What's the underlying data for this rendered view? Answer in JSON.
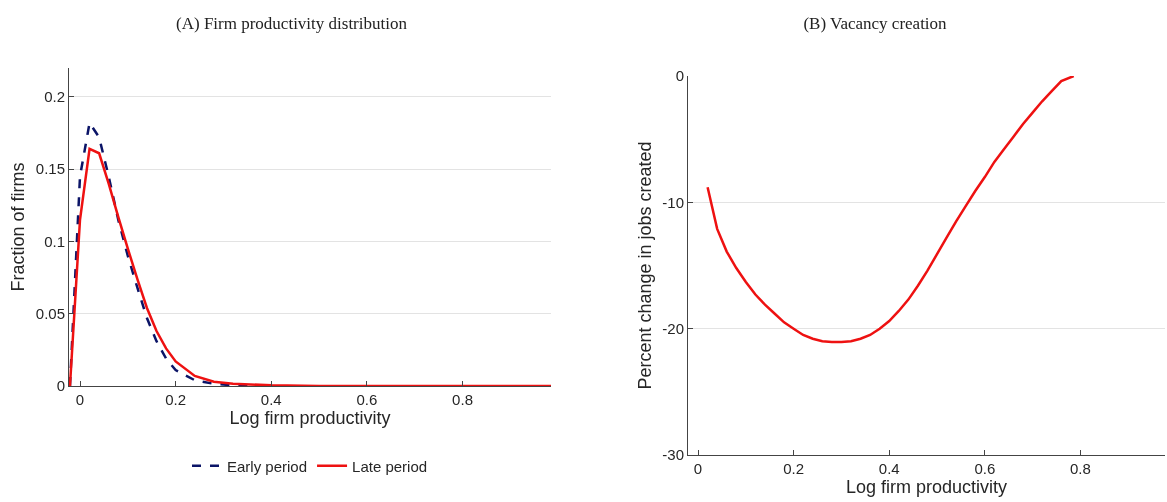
{
  "chart_data": [
    {
      "type": "line",
      "title": "(A) Firm productivity distribution",
      "xlabel": "Log firm productivity",
      "ylabel": "Fraction of firms",
      "xlim": [
        -0.023,
        0.985
      ],
      "xticks": [
        0,
        0.2,
        0.4,
        0.6,
        0.8
      ],
      "ylim": [
        0,
        0.22
      ],
      "yticks": [
        0,
        0.05,
        0.1,
        0.15,
        0.2
      ],
      "grid": "y",
      "legend": "bottom",
      "series": [
        {
          "name": "Early period",
          "color": "#0b1467",
          "line_style": "dashed",
          "x": [
            -0.021,
            0,
            0.02,
            0.04,
            0.06,
            0.08,
            0.1,
            0.12,
            0.14,
            0.16,
            0.18,
            0.2,
            0.24,
            0.28,
            0.32,
            0.4
          ],
          "values": [
            0,
            0.145,
            0.182,
            0.172,
            0.145,
            0.115,
            0.09,
            0.068,
            0.047,
            0.031,
            0.019,
            0.011,
            0.004,
            0.0015,
            0.0005,
            0
          ]
        },
        {
          "name": "Late period",
          "color": "#ee1111",
          "line_style": "solid",
          "x": [
            -0.021,
            0,
            0.02,
            0.04,
            0.06,
            0.08,
            0.1,
            0.12,
            0.14,
            0.16,
            0.18,
            0.2,
            0.24,
            0.28,
            0.32,
            0.4,
            0.5,
            0.6,
            0.7,
            0.8,
            0.9,
            0.985
          ],
          "values": [
            0,
            0.115,
            0.164,
            0.161,
            0.14,
            0.117,
            0.095,
            0.074,
            0.054,
            0.038,
            0.026,
            0.017,
            0.007,
            0.003,
            0.0015,
            0.0005,
            0,
            0,
            0,
            0,
            0,
            0
          ]
        }
      ]
    },
    {
      "type": "line",
      "title": "(B) Vacancy creation",
      "xlabel": "Log firm productivity",
      "ylabel": "Percent change in jobs created",
      "xlim": [
        -0.021,
        0.977
      ],
      "xticks": [
        0,
        0.2,
        0.4,
        0.6,
        0.8
      ],
      "ylim": [
        -30,
        0
      ],
      "yticks": [
        -30,
        -20,
        -10,
        0
      ],
      "grid": "y",
      "legend": false,
      "series": [
        {
          "color": "#ee1111",
          "line_style": "solid",
          "x": [
            0.02,
            0.04,
            0.06,
            0.08,
            0.1,
            0.12,
            0.14,
            0.16,
            0.18,
            0.2,
            0.22,
            0.24,
            0.26,
            0.28,
            0.3,
            0.32,
            0.34,
            0.36,
            0.38,
            0.4,
            0.42,
            0.44,
            0.46,
            0.48,
            0.5,
            0.52,
            0.54,
            0.56,
            0.58,
            0.6,
            0.62,
            0.64,
            0.66,
            0.68,
            0.7,
            0.72,
            0.74,
            0.76,
            0.786
          ],
          "values": [
            -8.8,
            -12.1,
            -13.9,
            -15.2,
            -16.3,
            -17.3,
            -18.1,
            -18.8,
            -19.5,
            -20.0,
            -20.5,
            -20.8,
            -21.0,
            -21.05,
            -21.05,
            -21.0,
            -20.8,
            -20.5,
            -20.0,
            -19.4,
            -18.6,
            -17.7,
            -16.6,
            -15.4,
            -14.1,
            -12.8,
            -11.5,
            -10.3,
            -9.1,
            -8.0,
            -6.8,
            -5.8,
            -4.8,
            -3.8,
            -2.9,
            -2.0,
            -1.2,
            -0.4,
            0
          ]
        }
      ]
    }
  ]
}
